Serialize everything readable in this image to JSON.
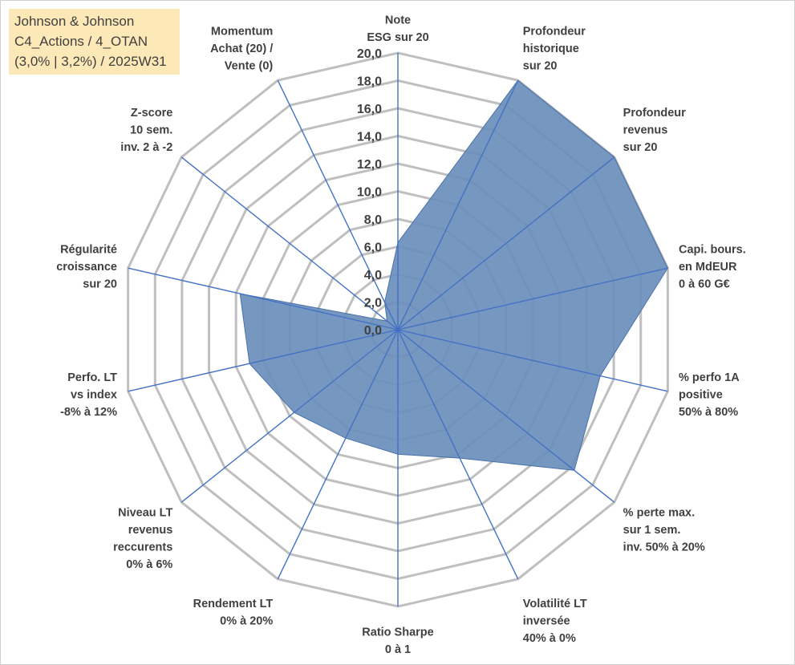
{
  "info": {
    "line1": "Johnson & Johnson",
    "line2": "C4_Actions / 4_OTAN",
    "line3": "(3,0% | 3,2%) / 2025W31"
  },
  "colors": {
    "grid": "#bfbfbf",
    "spoke": "#4472c4",
    "fill": "#6a8fbb",
    "stroke": "#4a72a8",
    "text": "#404040"
  },
  "chart_data": {
    "type": "radar",
    "title": "",
    "rmin": 0,
    "rmax": 20,
    "step": 2,
    "tick_labels": [
      "0,0",
      "2,0",
      "4,0",
      "6,0",
      "8,0",
      "10,0",
      "12,0",
      "14,0",
      "16,0",
      "18,0",
      "20,0"
    ],
    "categories": [
      [
        "Note",
        "ESG sur 20"
      ],
      [
        "Profondeur",
        "historique",
        "sur 20"
      ],
      [
        "Profondeur",
        "revenus",
        "sur 20"
      ],
      [
        "Capi. bours.",
        "en MdEUR",
        "0 à 60 G€"
      ],
      [
        "% perfo 1A",
        "positive",
        "50% à 80%"
      ],
      [
        "% perte max.",
        "sur 1 sem.",
        "inv. 50% à 20%"
      ],
      [
        "Volatilité LT",
        "inversée",
        "40% à 0%"
      ],
      [
        "Ratio Sharpe",
        "0 à 1"
      ],
      [
        "Rendement LT",
        "0% à 20%"
      ],
      [
        "Niveau LT",
        "revenus",
        "reccurents",
        "0% à 6%"
      ],
      [
        "Perfo. LT",
        "vs index",
        "-8% à 12%"
      ],
      [
        "Régularité",
        "croissance",
        "sur 20"
      ],
      [
        "Z-score",
        "10 sem.",
        "inv. 2 à -2"
      ],
      [
        "Momentum",
        "Achat (20) /",
        "Vente (0)"
      ]
    ],
    "series": [
      {
        "values": [
          6.3,
          20.0,
          20.0,
          20.0,
          15.0,
          16.3,
          10.3,
          9.0,
          8.7,
          9.6,
          11.0,
          11.7,
          1.0,
          2.2
        ]
      }
    ]
  }
}
